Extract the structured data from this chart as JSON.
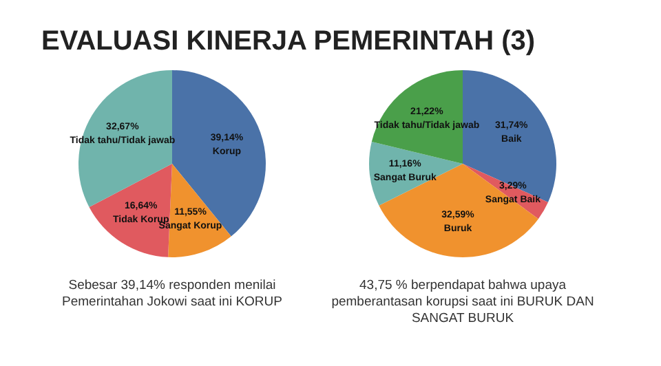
{
  "chart_data": [
    {
      "type": "pie",
      "title": "EVALUASI KINERJA PEMERINTAH (3)",
      "categories": [
        "Korup",
        "Sangat Korup",
        "Tidak Korup",
        "Tidak tahu/Tidak jawab"
      ],
      "values": [
        39.14,
        11.55,
        16.64,
        32.67
      ],
      "colors": [
        "#4a72a8",
        "#f0922e",
        "#e05a5f",
        "#70b4ac"
      ],
      "value_labels": [
        "39,14%",
        "11,55%",
        "16,64%",
        "32,67%"
      ],
      "annotations": [
        "Sebesar 39,14% responden menilai Pemerintahan Jokowi saat ini  KORUP"
      ]
    },
    {
      "type": "pie",
      "categories": [
        "Baik",
        "Sangat Baik",
        "Buruk",
        "Sangat Buruk",
        "Tidak tahu/Tidak jawab"
      ],
      "values": [
        31.74,
        3.29,
        32.59,
        11.16,
        21.22
      ],
      "colors": [
        "#4a72a8",
        "#e05a5f",
        "#f0922e",
        "#70b4ac",
        "#4a9f4a"
      ],
      "value_labels": [
        "31,74%",
        "3,29%",
        "32,59%",
        "11,16%",
        "21,22%"
      ],
      "annotations": [
        "43,75 % berpendapat bahwa upaya pemberantasan korupsi saat ini BURUK DAN SANGAT BURUK"
      ]
    }
  ]
}
